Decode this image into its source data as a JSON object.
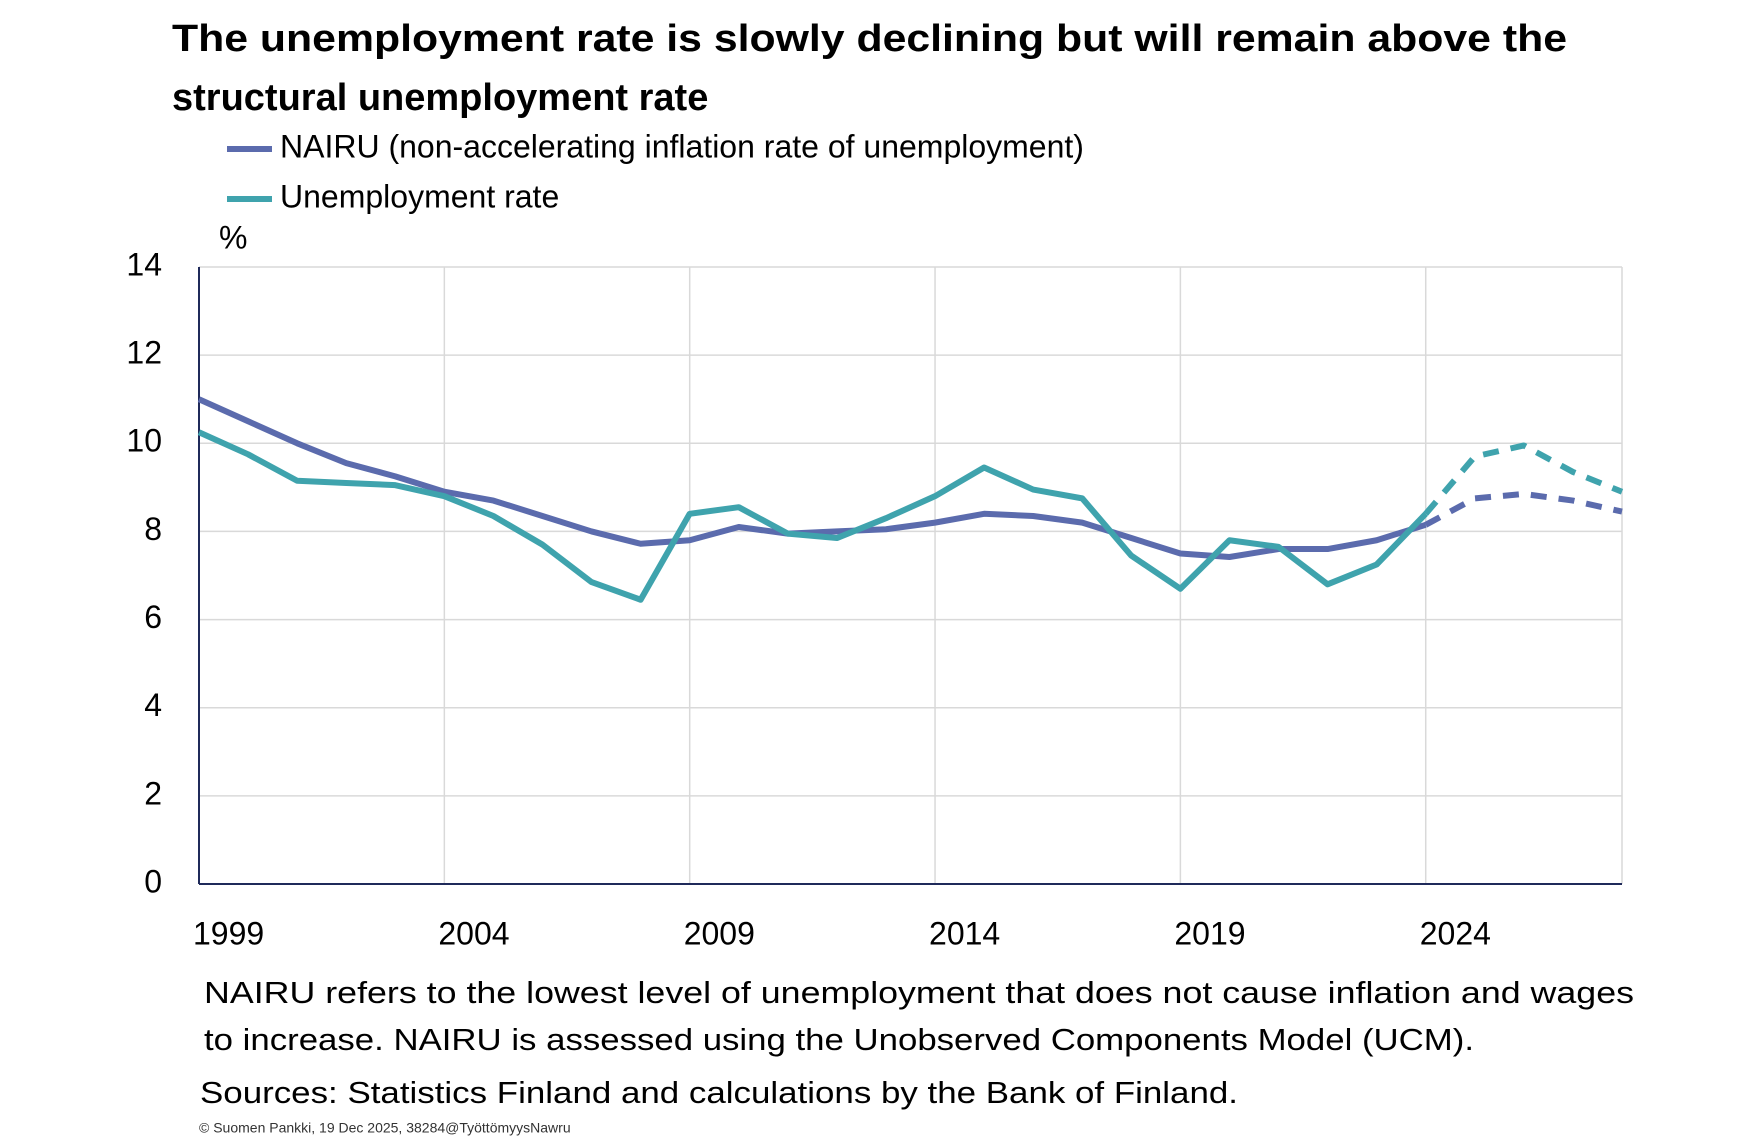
{
  "chart_data": {
    "type": "line",
    "title": [
      "The unemployment rate is slowly declining but will remain above the",
      "structural unemployment rate"
    ],
    "y_unit": "%",
    "x": [
      1999,
      2000,
      2001,
      2002,
      2003,
      2004,
      2005,
      2006,
      2007,
      2008,
      2009,
      2010,
      2011,
      2012,
      2013,
      2014,
      2015,
      2016,
      2017,
      2018,
      2019,
      2020,
      2021,
      2022,
      2023,
      2024,
      2025,
      2026,
      2027,
      2028
    ],
    "series": [
      {
        "name": "NAIRU (non-accelerating inflation rate of unemployment)",
        "color": "#5b6bad",
        "values": [
          11.0,
          10.5,
          10.0,
          9.55,
          9.25,
          8.9,
          8.7,
          8.35,
          8.0,
          7.72,
          7.8,
          8.1,
          7.95,
          8.0,
          8.05,
          8.2,
          8.4,
          8.35,
          8.2,
          7.85,
          7.5,
          7.42,
          7.6,
          7.6,
          7.8,
          8.15,
          8.75,
          8.85,
          8.7,
          8.45
        ]
      },
      {
        "name": "Unemployment rate",
        "color": "#3fa3ad",
        "values": [
          10.25,
          9.75,
          9.15,
          9.1,
          9.05,
          8.8,
          8.35,
          7.7,
          6.85,
          6.45,
          8.4,
          8.55,
          7.95,
          7.85,
          8.3,
          8.8,
          9.45,
          8.95,
          8.75,
          7.45,
          6.7,
          7.8,
          7.65,
          6.8,
          7.25,
          8.4,
          9.7,
          9.95,
          9.35,
          8.9
        ]
      }
    ],
    "forecast_from": 2024,
    "xlim": [
      1999,
      2028
    ],
    "xticks": [
      1999,
      2004,
      2009,
      2014,
      2019,
      2024
    ],
    "ylim": [
      0,
      14
    ],
    "yticks": [
      0,
      2,
      4,
      6,
      8,
      10,
      12,
      14
    ],
    "grid": true,
    "notes": [
      "NAIRU refers to the lowest level of unemployment that does not cause inflation and wages",
      "to increase. NAIRU is assessed using the Unobserved Components Model (UCM)."
    ],
    "sources": "Sources: Statistics Finland and calculations by the Bank of Finland.",
    "copyright": "© Suomen Pankki, 19 Dec 2025, 38284@TyöttömyysNawru"
  }
}
